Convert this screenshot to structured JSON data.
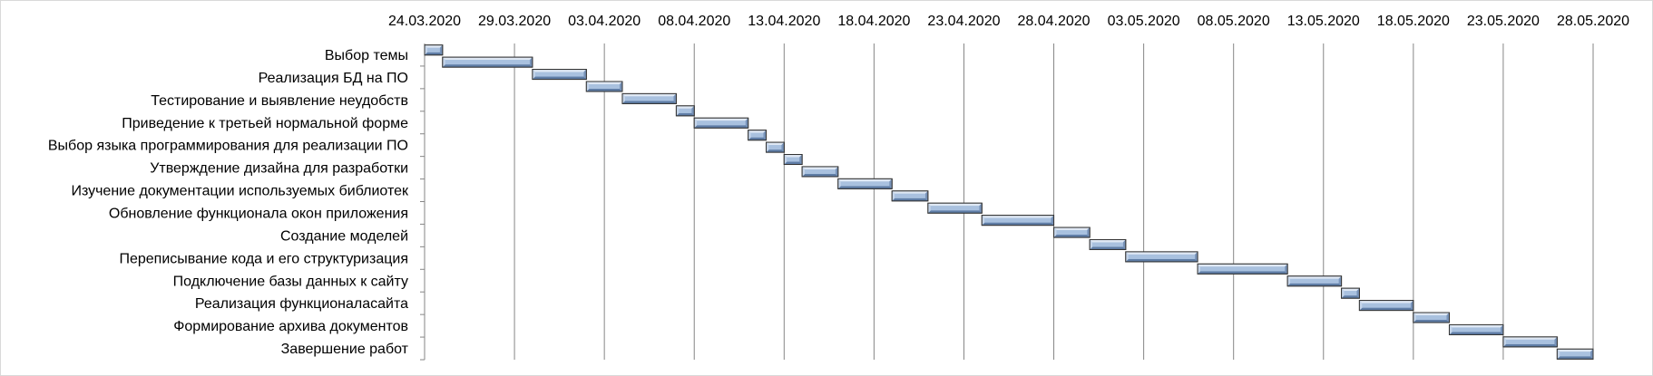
{
  "chart_data": {
    "type": "bar",
    "subtype": "gantt",
    "title": "",
    "xlabel": "",
    "ylabel": "",
    "x_axis_position": "top",
    "grid": "vertical",
    "legend": "none",
    "bar_color": "#a6bfdd",
    "xlim": [
      "2020-03-24",
      "2020-05-28"
    ],
    "x_ticks": [
      "24.03.2020",
      "29.03.2020",
      "03.04.2020",
      "08.04.2020",
      "13.04.2020",
      "18.04.2020",
      "23.04.2020",
      "28.04.2020",
      "03.05.2020",
      "08.05.2020",
      "13.05.2020",
      "18.05.2020",
      "23.05.2020",
      "28.05.2020"
    ],
    "categories": [
      "Выбор темы",
      "Реализация  БД на ПО",
      "Тестирование  и выявление  неудобств",
      "Приведение  к третьей  нормальной форме",
      "Выбор языка программирования  для реализации  ПО",
      "Утверждение  дизайна для разработки",
      "Изучение  документации  используемых библиотек",
      "Обновление  функционала окон приложения",
      "Создание моделей",
      "Переписывание  кода и его структуризация",
      "Подключение базы данных к сайту",
      "Реализация  функционаласайта",
      "Формирование  архива документов",
      "Завершение  работ"
    ],
    "tasks": [
      {
        "start": "2020-03-24",
        "end": "2020-03-25"
      },
      {
        "start": "2020-03-25",
        "end": "2020-03-30"
      },
      {
        "start": "2020-03-30",
        "end": "2020-04-02"
      },
      {
        "start": "2020-04-02",
        "end": "2020-04-04"
      },
      {
        "start": "2020-04-04",
        "end": "2020-04-07"
      },
      {
        "start": "2020-04-07",
        "end": "2020-04-08"
      },
      {
        "start": "2020-04-08",
        "end": "2020-04-11"
      },
      {
        "start": "2020-04-11",
        "end": "2020-04-12"
      },
      {
        "start": "2020-04-12",
        "end": "2020-04-13"
      },
      {
        "start": "2020-04-13",
        "end": "2020-04-14"
      },
      {
        "start": "2020-04-14",
        "end": "2020-04-16"
      },
      {
        "start": "2020-04-16",
        "end": "2020-04-19"
      },
      {
        "start": "2020-04-19",
        "end": "2020-04-21"
      },
      {
        "start": "2020-04-21",
        "end": "2020-04-24"
      },
      {
        "start": "2020-04-24",
        "end": "2020-04-28"
      },
      {
        "start": "2020-04-28",
        "end": "2020-04-30"
      },
      {
        "start": "2020-04-30",
        "end": "2020-05-02"
      },
      {
        "start": "2020-05-02",
        "end": "2020-05-06"
      },
      {
        "start": "2020-05-06",
        "end": "2020-05-11"
      },
      {
        "start": "2020-05-11",
        "end": "2020-05-14"
      },
      {
        "start": "2020-05-14",
        "end": "2020-05-15"
      },
      {
        "start": "2020-05-15",
        "end": "2020-05-18"
      },
      {
        "start": "2020-05-18",
        "end": "2020-05-20"
      },
      {
        "start": "2020-05-20",
        "end": "2020-05-23"
      },
      {
        "start": "2020-05-23",
        "end": "2020-05-26"
      },
      {
        "start": "2020-05-26",
        "end": "2020-05-28"
      }
    ]
  }
}
